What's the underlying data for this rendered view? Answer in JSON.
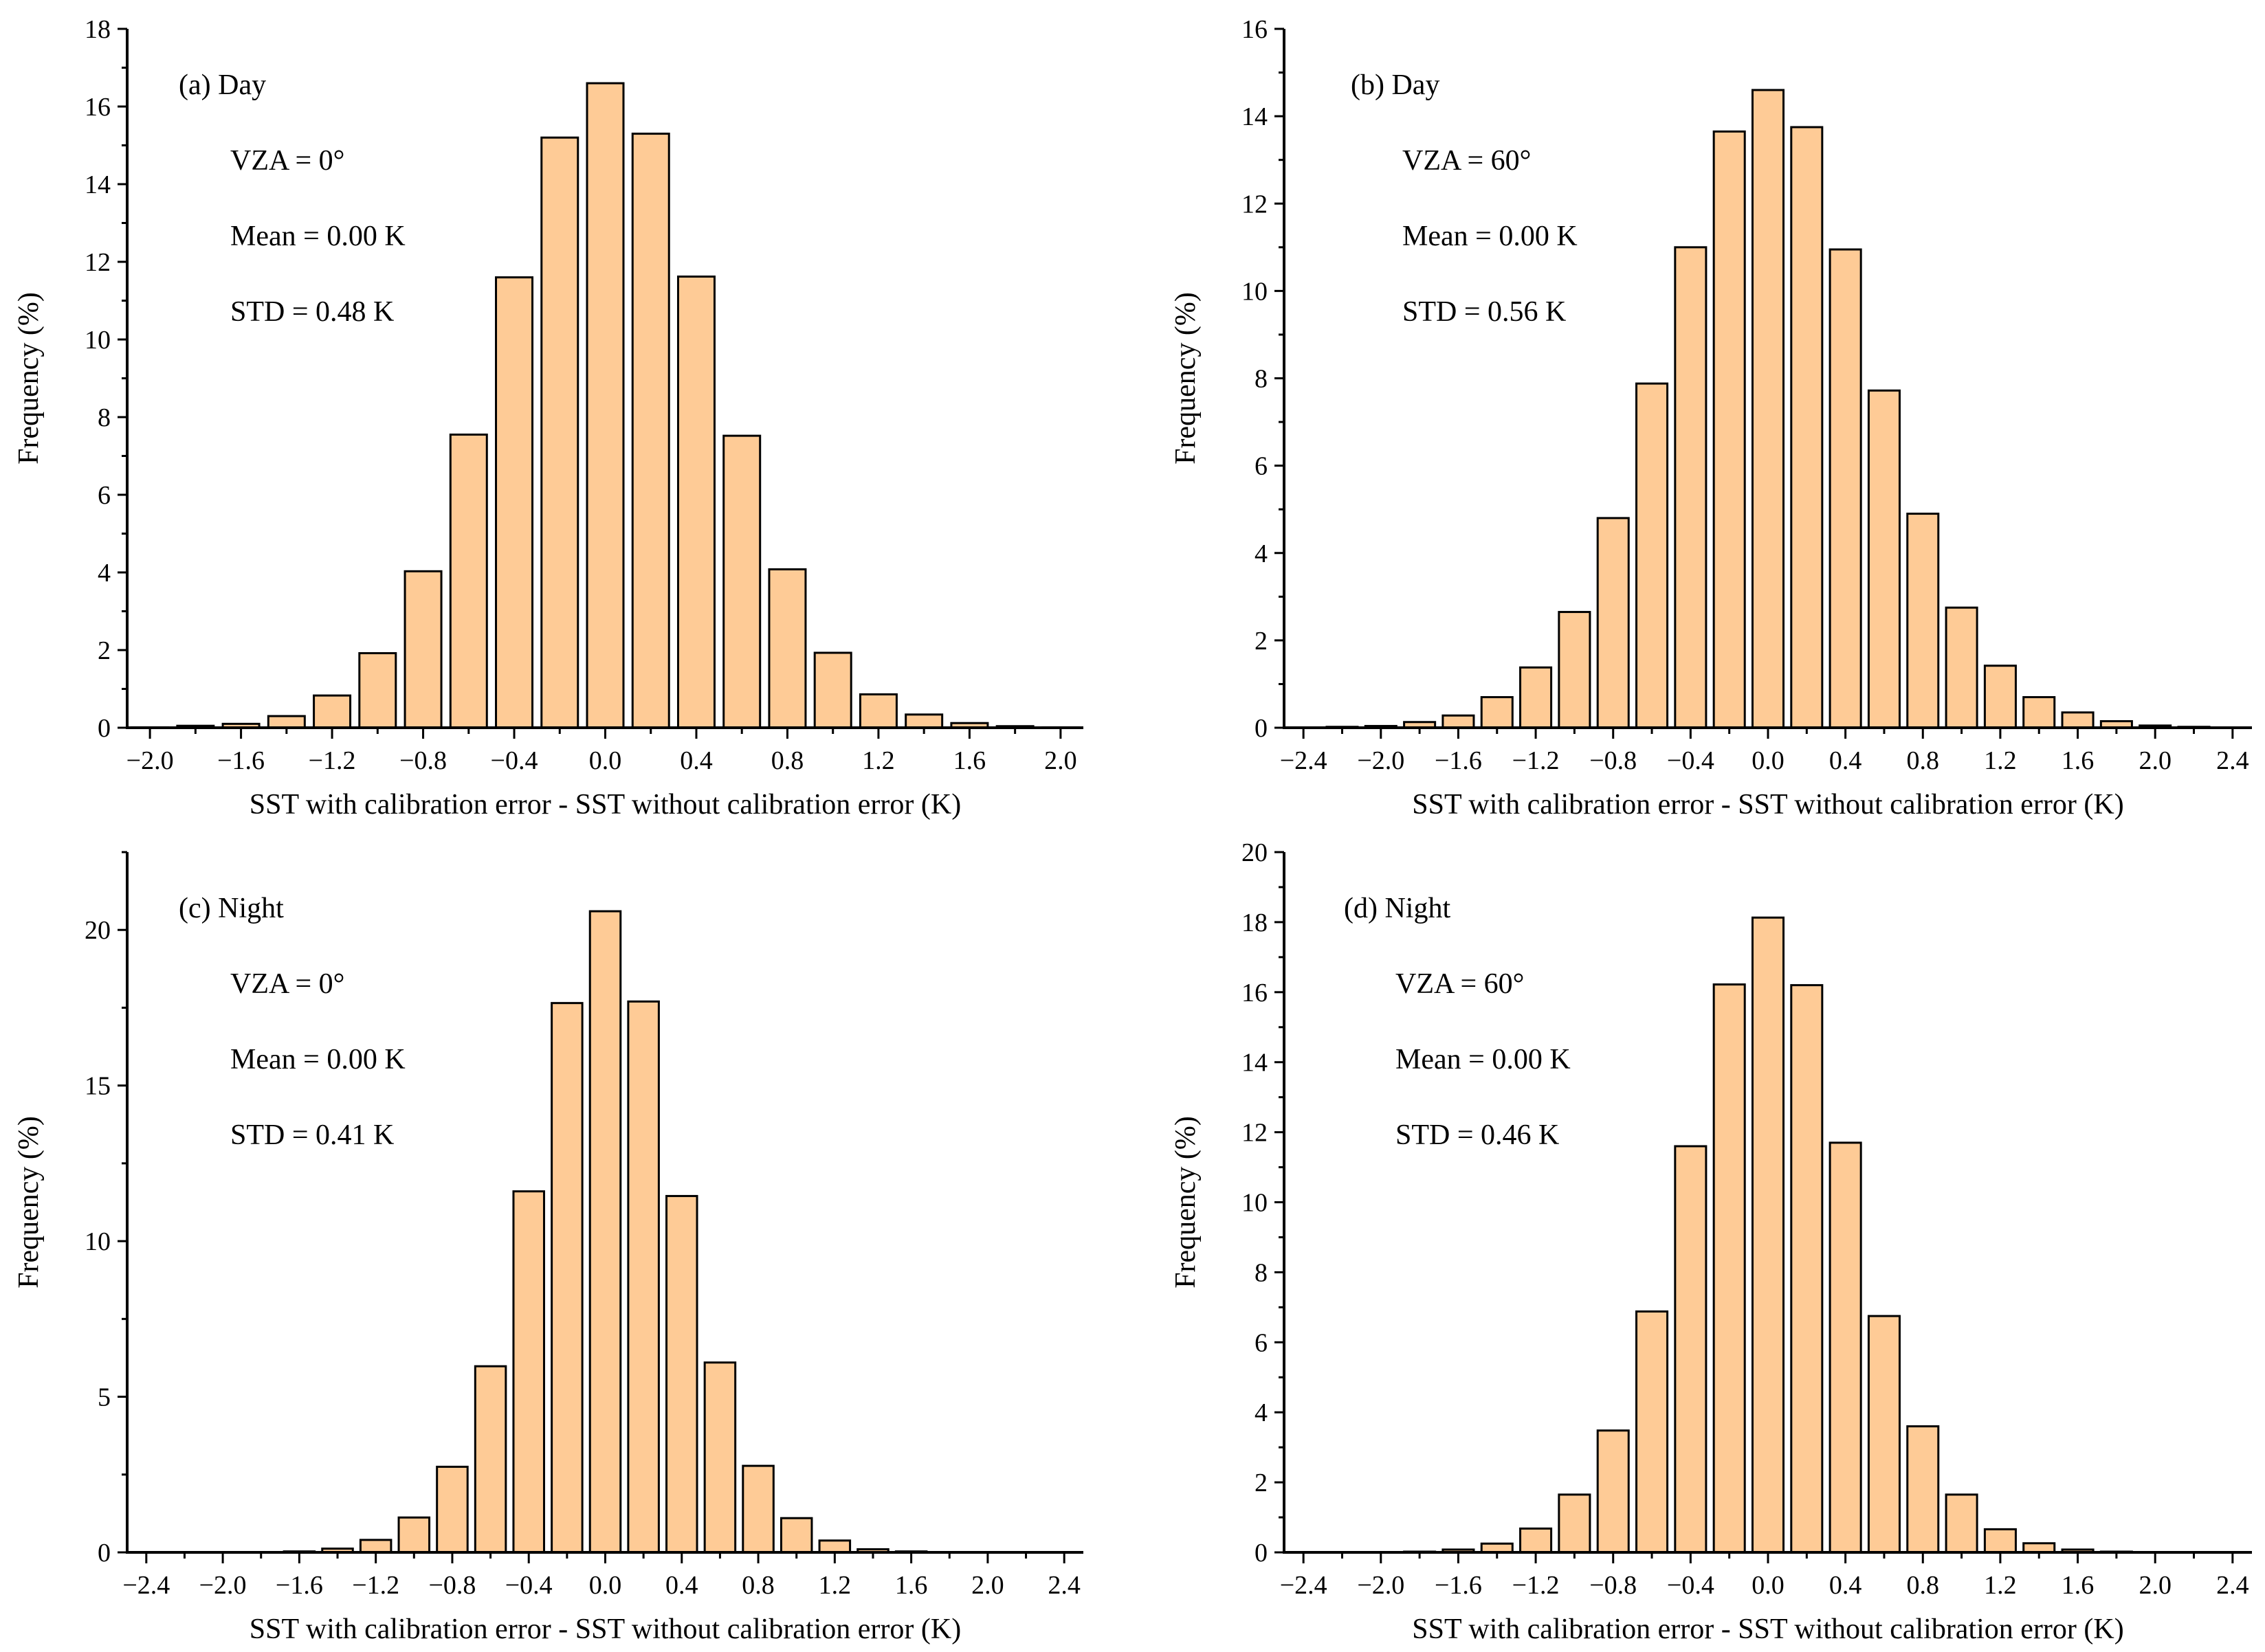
{
  "chart_data": [
    {
      "type": "bar",
      "panel_label": "(a) Day",
      "annotations": [
        "VZA = 0°",
        "Mean = 0.00 K",
        "STD = 0.48 K"
      ],
      "xlabel": "SST with calibration error - SST without calibration error (K)",
      "ylabel": "Frequency (%)",
      "xlim": [
        -2.1,
        2.1
      ],
      "ylim": [
        0,
        18
      ],
      "xticks": [
        "-2.0",
        "-1.6",
        "-1.2",
        "-0.8",
        "-0.4",
        "0.0",
        "0.4",
        "0.8",
        "1.2",
        "1.6",
        "2.0"
      ],
      "xtick_values": [
        -2.0,
        -1.6,
        -1.2,
        -0.8,
        -0.4,
        0.0,
        0.4,
        0.8,
        1.2,
        1.6,
        2.0
      ],
      "yticks": [
        0,
        2,
        4,
        6,
        8,
        10,
        12,
        14,
        16,
        18
      ],
      "x": [
        -2.0,
        -1.8,
        -1.6,
        -1.4,
        -1.2,
        -1.0,
        -0.8,
        -0.6,
        -0.4,
        -0.2,
        0.0,
        0.2,
        0.4,
        0.6,
        0.8,
        1.0,
        1.2,
        1.4,
        1.6,
        1.8,
        2.0
      ],
      "values": [
        0.01,
        0.05,
        0.1,
        0.3,
        0.83,
        1.92,
        4.03,
        7.55,
        11.6,
        15.2,
        16.6,
        15.3,
        11.62,
        7.52,
        4.08,
        1.93,
        0.86,
        0.34,
        0.12,
        0.04,
        0.01
      ],
      "bar_color": "#FECB96"
    },
    {
      "type": "bar",
      "panel_label": "(b) Day",
      "annotations": [
        "VZA = 60°",
        "Mean = 0.00 K",
        "STD = 0.56 K"
      ],
      "xlabel": "SST with calibration error - SST without calibration error (K)",
      "ylabel": "Frequency (%)",
      "xlim": [
        -2.5,
        2.5
      ],
      "ylim": [
        0,
        16
      ],
      "xticks": [
        "-2.4",
        "-2.0",
        "-1.6",
        "-1.2",
        "-0.8",
        "-0.4",
        "0.0",
        "0.4",
        "0.8",
        "1.2",
        "1.6",
        "2.0",
        "2.4"
      ],
      "xtick_values": [
        -2.4,
        -2.0,
        -1.6,
        -1.2,
        -0.8,
        -0.4,
        0.0,
        0.4,
        0.8,
        1.2,
        1.6,
        2.0,
        2.4
      ],
      "yticks": [
        0,
        2,
        4,
        6,
        8,
        10,
        12,
        14,
        16
      ],
      "x": [
        -2.2,
        -2.0,
        -1.8,
        -1.6,
        -1.4,
        -1.2,
        -1.0,
        -0.8,
        -0.6,
        -0.4,
        -0.2,
        0.0,
        0.2,
        0.4,
        0.6,
        0.8,
        1.0,
        1.2,
        1.4,
        1.6,
        1.8,
        2.0,
        2.2
      ],
      "values": [
        0.02,
        0.04,
        0.13,
        0.28,
        0.7,
        1.38,
        2.65,
        4.8,
        7.88,
        11.0,
        13.65,
        14.6,
        13.75,
        10.95,
        7.72,
        4.9,
        2.75,
        1.42,
        0.7,
        0.35,
        0.15,
        0.05,
        0.02
      ],
      "bar_color": "#FECB96"
    },
    {
      "type": "bar",
      "panel_label": "(c) Night",
      "annotations": [
        "VZA = 0°",
        "Mean = 0.00 K",
        "STD = 0.41 K"
      ],
      "xlabel": "SST with calibration error - SST without calibration error (K)",
      "ylabel": "Frequency (%)",
      "xlim": [
        -2.5,
        2.5
      ],
      "ylim": [
        0,
        22.5
      ],
      "xticks": [
        "-2.4",
        "-2.0",
        "-1.6",
        "-1.2",
        "-0.8",
        "-0.4",
        "0.0",
        "0.4",
        "0.8",
        "1.2",
        "1.6",
        "2.0",
        "2.4"
      ],
      "xtick_values": [
        -2.4,
        -2.0,
        -1.6,
        -1.2,
        -0.8,
        -0.4,
        0.0,
        0.4,
        0.8,
        1.2,
        1.6,
        2.0,
        2.4
      ],
      "yticks": [
        0,
        5,
        10,
        15,
        20
      ],
      "x": [
        -1.6,
        -1.4,
        -1.2,
        -1.0,
        -0.8,
        -0.6,
        -0.4,
        -0.2,
        0.0,
        0.2,
        0.4,
        0.6,
        0.8,
        1.0,
        1.2,
        1.4,
        1.6
      ],
      "values": [
        0.03,
        0.12,
        0.4,
        1.12,
        2.75,
        5.98,
        11.6,
        17.65,
        20.6,
        17.7,
        11.45,
        6.1,
        2.78,
        1.1,
        0.38,
        0.1,
        0.03
      ],
      "bar_color": "#FECB96"
    },
    {
      "type": "bar",
      "panel_label": "(d) Night",
      "annotations": [
        "VZA = 60°",
        "Mean = 0.00 K",
        "STD = 0.46 K"
      ],
      "xlabel": "SST with calibration error - SST without calibration error (K)",
      "ylabel": "Frequency (%)",
      "xlim": [
        -2.5,
        2.5
      ],
      "ylim": [
        0,
        20
      ],
      "xticks": [
        "-2.4",
        "-2.0",
        "-1.6",
        "-1.2",
        "-0.8",
        "-0.4",
        "0.0",
        "0.4",
        "0.8",
        "1.2",
        "1.6",
        "2.0",
        "2.4"
      ],
      "xtick_values": [
        -2.4,
        -2.0,
        -1.6,
        -1.2,
        -0.8,
        -0.4,
        0.0,
        0.4,
        0.8,
        1.2,
        1.6,
        2.0,
        2.4
      ],
      "yticks": [
        0,
        2,
        4,
        6,
        8,
        10,
        12,
        14,
        16,
        18,
        20
      ],
      "x": [
        -1.8,
        -1.6,
        -1.4,
        -1.2,
        -1.0,
        -0.8,
        -0.6,
        -0.4,
        -0.2,
        0.0,
        0.2,
        0.4,
        0.6,
        0.8,
        1.0,
        1.2,
        1.4,
        1.6,
        1.8
      ],
      "values": [
        0.02,
        0.08,
        0.25,
        0.68,
        1.65,
        3.48,
        6.88,
        11.6,
        16.22,
        18.13,
        16.2,
        11.7,
        6.75,
        3.6,
        1.65,
        0.66,
        0.26,
        0.08,
        0.02
      ],
      "bar_color": "#FECB96"
    }
  ]
}
